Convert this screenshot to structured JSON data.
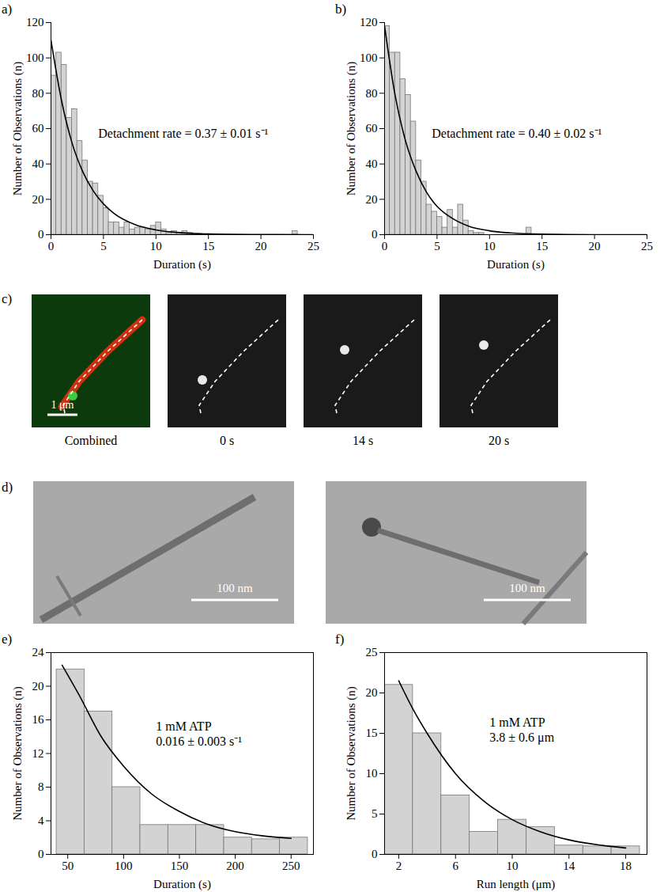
{
  "chart_data": [
    {
      "type": "histogram",
      "title": "a)",
      "x_label": "Duration (s)",
      "y_label": "Number of Observations (n)",
      "bins": [
        0,
        0.5,
        1,
        1.5,
        2,
        2.5,
        3,
        3.5,
        4,
        4.5,
        5,
        5.5,
        6,
        6.5,
        7,
        7.5,
        8,
        8.5,
        9,
        9.5,
        10,
        10.5,
        11,
        11.5,
        12,
        12.5,
        13,
        13.5,
        14,
        14.5,
        15,
        15.5,
        16,
        16.5,
        17,
        17.5,
        18,
        18.5,
        19,
        19.5,
        20,
        20.5,
        21,
        21.5,
        22,
        22.5,
        23,
        23.5,
        24,
        24.5,
        25
      ],
      "values": [
        90,
        103,
        96,
        66,
        71,
        53,
        42,
        30,
        29,
        22,
        15,
        7,
        7,
        4,
        7,
        3,
        4,
        4,
        3,
        5,
        7,
        3,
        1,
        2,
        1,
        2,
        1,
        0,
        0,
        0,
        0,
        0,
        0,
        0,
        0,
        0,
        0,
        0,
        0,
        0,
        0,
        0,
        0,
        0,
        0,
        0,
        2,
        0,
        0,
        0
      ],
      "color": "#d3d3d3",
      "fit": {
        "x": [
          0,
          1,
          2,
          3,
          4,
          5,
          6,
          8,
          10,
          12,
          15,
          20,
          25
        ],
        "values": [
          110,
          76,
          52,
          36,
          25,
          17.4,
          12,
          5.7,
          2.7,
          1.3,
          0.4,
          0.1,
          0
        ],
        "color": "#000000"
      },
      "annotations": [
        "Detachment rate = 0.37 ± 0.01 s⁻¹"
      ],
      "xlim": [
        0,
        25
      ],
      "xticks": [
        0,
        5,
        10,
        15,
        20,
        25
      ],
      "ylim": [
        0,
        120
      ],
      "yticks": [
        0,
        20,
        40,
        60,
        80,
        100,
        120
      ]
    },
    {
      "type": "histogram",
      "title": "b)",
      "x_label": "Duration (s)",
      "y_label": "Number of Observations (n)",
      "bins": [
        0,
        0.5,
        1,
        1.5,
        2,
        2.5,
        3,
        3.5,
        4,
        4.5,
        5,
        5.5,
        6,
        6.5,
        7,
        7.5,
        8,
        8.5,
        9,
        9.5,
        10,
        10.5,
        11,
        11.5,
        12,
        12.5,
        13,
        13.5,
        14,
        14.5,
        15,
        15.5,
        16,
        16.5,
        17,
        17.5,
        18,
        18.5,
        19,
        19.5,
        20,
        20.5,
        21,
        21.5,
        22,
        22.5,
        23,
        23.5,
        24,
        24.5,
        25
      ],
      "values": [
        118,
        103,
        103,
        88,
        79,
        64,
        42,
        30,
        17,
        13,
        10,
        4,
        14,
        4,
        17,
        8,
        2,
        1,
        1,
        0,
        0,
        0,
        0,
        0,
        0,
        0,
        0,
        4,
        0,
        0,
        0,
        0,
        0,
        0,
        0,
        0,
        0,
        0,
        0,
        0,
        0,
        0,
        0,
        0,
        0,
        0,
        0,
        0,
        0,
        0
      ],
      "color": "#d3d3d3",
      "fit": {
        "x": [
          0,
          1,
          2,
          3,
          4,
          5,
          6,
          8,
          10,
          12,
          15,
          20,
          25
        ],
        "values": [
          118,
          79,
          53,
          36,
          24,
          16,
          11,
          4.8,
          2.2,
          1,
          0.3,
          0,
          0
        ],
        "color": "#000000"
      },
      "annotations": [
        "Detachment rate = 0.40 ± 0.02 s⁻¹"
      ],
      "xlim": [
        0,
        25
      ],
      "xticks": [
        0,
        5,
        10,
        15,
        20,
        25
      ],
      "ylim": [
        0,
        120
      ],
      "yticks": [
        0,
        20,
        40,
        60,
        80,
        100,
        120
      ]
    },
    {
      "type": "histogram",
      "title": "e)",
      "x_label": "Duration (s)",
      "y_label": "Number of Observations (n)",
      "bins": [
        40,
        65,
        90,
        115,
        140,
        165,
        190,
        215,
        240,
        265
      ],
      "values": [
        22,
        17,
        8,
        3.5,
        3.5,
        3.5,
        2,
        1.8,
        2
      ],
      "color": "#d3d3d3",
      "fit": {
        "x": [
          45,
          60,
          80,
          100,
          125,
          150,
          175,
          200,
          225,
          250
        ],
        "values": [
          22.5,
          19,
          14,
          10.5,
          7.2,
          5.1,
          3.6,
          2.7,
          2.2,
          1.9
        ],
        "color": "#000000"
      },
      "annotations": [
        "1 mM ATP",
        "0.016 ± 0.003 s⁻¹"
      ],
      "xlim": [
        35,
        270
      ],
      "xticks": [
        50,
        100,
        150,
        200,
        250
      ],
      "ylim": [
        0,
        24
      ],
      "yticks": [
        0,
        4,
        8,
        12,
        16,
        20,
        24
      ]
    },
    {
      "type": "histogram",
      "title": "f)",
      "x_label": "Run length (μm)",
      "y_label": "Number of Observations (n)",
      "bins": [
        1,
        3,
        5,
        7,
        9,
        11,
        13,
        15,
        17,
        19
      ],
      "values": [
        21,
        15,
        7.3,
        2.8,
        4.3,
        3.4,
        1.1,
        1,
        1
      ],
      "color": "#d3d3d3",
      "fit": {
        "x": [
          2,
          3,
          4,
          6,
          8,
          10,
          12,
          14,
          16,
          18
        ],
        "values": [
          21.5,
          18,
          15,
          10,
          6.6,
          4.3,
          2.8,
          1.8,
          1.2,
          0.8
        ],
        "color": "#000000"
      },
      "annotations": [
        "1 mM ATP",
        "3.8 ± 0.6 μm"
      ],
      "xlim": [
        1,
        19.5
      ],
      "xticks": [
        2,
        6,
        10,
        14,
        18
      ],
      "ylim": [
        0,
        25
      ],
      "yticks": [
        0,
        5,
        10,
        15,
        20,
        25
      ]
    }
  ],
  "panel_c": {
    "label": "c)",
    "frames": [
      "Combined",
      "0 s",
      "14 s",
      "20 s"
    ],
    "scale_bar": "1 μm"
  },
  "panel_d": {
    "label": "d)",
    "scale_bars": [
      "100 nm",
      "100 nm"
    ]
  }
}
